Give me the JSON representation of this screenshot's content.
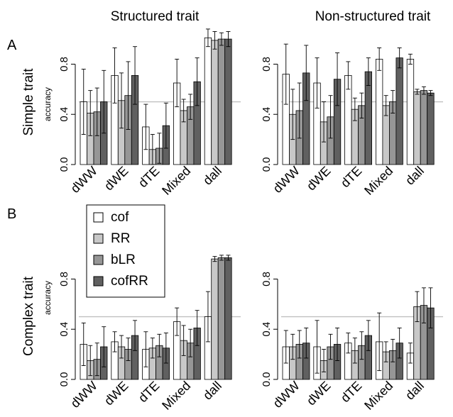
{
  "figure": {
    "column_titles": [
      "Structured trait",
      "Non-structured trait"
    ],
    "panel_letters": [
      "A",
      "B"
    ],
    "row_titles": [
      "Simple trait",
      "Complex trait"
    ],
    "row_subtitles": [
      "accuracy",
      "accuracy"
    ]
  },
  "colors": {
    "series": [
      "#ffffff",
      "#c8c8c8",
      "#969696",
      "#606060"
    ],
    "stroke": "#000000",
    "reference_line": "#c0c0c0"
  },
  "legend": {
    "entries": [
      "cof",
      "RR",
      "bLR",
      "cofRR"
    ]
  },
  "chart_data": [
    {
      "type": "bar",
      "panel": "A",
      "row_title": "Simple trait",
      "column_title": "Structured trait",
      "ylabel": "accuracy",
      "categories": [
        "dWW",
        "dWE",
        "dTE",
        "Mixed",
        "dall"
      ],
      "series": [
        {
          "name": "cof",
          "values": [
            0.5,
            0.71,
            0.3,
            0.65,
            1.01
          ],
          "errors": [
            0.26,
            0.22,
            0.18,
            0.19,
            0.07
          ]
        },
        {
          "name": "RR",
          "values": [
            0.41,
            0.51,
            0.12,
            0.43,
            0.99
          ],
          "errors": [
            0.18,
            0.22,
            0.12,
            0.09,
            0.07
          ]
        },
        {
          "name": "bLR",
          "values": [
            0.42,
            0.55,
            0.13,
            0.46,
            1.0
          ],
          "errors": [
            0.19,
            0.27,
            0.12,
            0.1,
            0.05
          ]
        },
        {
          "name": "cofRR",
          "values": [
            0.5,
            0.71,
            0.31,
            0.66,
            1.0
          ],
          "errors": [
            0.25,
            0.23,
            0.18,
            0.19,
            0.06
          ]
        }
      ],
      "reference_y": 0.5,
      "ylim": [
        0,
        1.04
      ],
      "yticks": [
        "0.0",
        "0.4",
        "0.8"
      ],
      "ytick_values": [
        0,
        0.4,
        0.8
      ],
      "grid": false
    },
    {
      "type": "bar",
      "panel": "A",
      "row_title": "Simple trait",
      "column_title": "Non-structured trait",
      "ylabel": "",
      "categories": [
        "dWW",
        "dWE",
        "dTE",
        "Mixed",
        "dall"
      ],
      "series": [
        {
          "name": "cof",
          "values": [
            0.72,
            0.65,
            0.71,
            0.84,
            0.84
          ],
          "errors": [
            0.24,
            0.2,
            0.11,
            0.09,
            0.04
          ]
        },
        {
          "name": "RR",
          "values": [
            0.4,
            0.34,
            0.44,
            0.47,
            0.58
          ],
          "errors": [
            0.2,
            0.16,
            0.09,
            0.08,
            0.02
          ]
        },
        {
          "name": "bLR",
          "values": [
            0.43,
            0.38,
            0.47,
            0.5,
            0.59
          ],
          "errors": [
            0.22,
            0.17,
            0.1,
            0.09,
            0.03
          ]
        },
        {
          "name": "cofRR",
          "values": [
            0.73,
            0.68,
            0.74,
            0.85,
            0.57
          ],
          "errors": [
            0.22,
            0.21,
            0.11,
            0.08,
            0.02
          ]
        }
      ],
      "reference_y": 0.5,
      "ylim": [
        0,
        1.04
      ],
      "yticks": [
        "0.0",
        "0.4",
        "0.8"
      ],
      "ytick_values": [
        0,
        0.4,
        0.8
      ],
      "grid": false
    },
    {
      "type": "bar",
      "panel": "B",
      "row_title": "Complex trait",
      "column_title": "Structured trait",
      "ylabel": "accuracy",
      "categories": [
        "dWW",
        "dWE",
        "dTE",
        "Mixed",
        "dall"
      ],
      "series": [
        {
          "name": "cof",
          "values": [
            0.28,
            0.3,
            0.24,
            0.46,
            0.5
          ],
          "errors": [
            0.17,
            0.08,
            0.14,
            0.11,
            0.2
          ]
        },
        {
          "name": "RR",
          "values": [
            0.15,
            0.26,
            0.25,
            0.31,
            0.96
          ],
          "errors": [
            0.12,
            0.09,
            0.08,
            0.12,
            0.02
          ]
        },
        {
          "name": "bLR",
          "values": [
            0.16,
            0.24,
            0.27,
            0.29,
            0.97
          ],
          "errors": [
            0.13,
            0.09,
            0.09,
            0.11,
            0.02
          ]
        },
        {
          "name": "cofRR",
          "values": [
            0.26,
            0.35,
            0.25,
            0.41,
            0.97
          ],
          "errors": [
            0.16,
            0.12,
            0.12,
            0.14,
            0.02
          ]
        }
      ],
      "reference_y": 0.5,
      "ylim": [
        0,
        1.04
      ],
      "yticks": [
        "0.0",
        "0.4",
        "0.8"
      ],
      "ytick_values": [
        0,
        0.4,
        0.8
      ],
      "grid": false
    },
    {
      "type": "bar",
      "panel": "B",
      "row_title": "Complex trait",
      "column_title": "Non-structured trait",
      "ylabel": "",
      "categories": [
        "dWW",
        "dWE",
        "dTE",
        "Mixed",
        "dall"
      ],
      "series": [
        {
          "name": "cof",
          "values": [
            0.26,
            0.26,
            0.29,
            0.3,
            0.21
          ],
          "errors": [
            0.13,
            0.21,
            0.08,
            0.23,
            0.08
          ]
        },
        {
          "name": "RR",
          "values": [
            0.26,
            0.15,
            0.23,
            0.22,
            0.58
          ],
          "errors": [
            0.1,
            0.09,
            0.1,
            0.08,
            0.12
          ]
        },
        {
          "name": "bLR",
          "values": [
            0.28,
            0.26,
            0.27,
            0.23,
            0.59
          ],
          "errors": [
            0.11,
            0.1,
            0.11,
            0.09,
            0.14
          ]
        },
        {
          "name": "cofRR",
          "values": [
            0.29,
            0.28,
            0.35,
            0.29,
            0.57
          ],
          "errors": [
            0.12,
            0.13,
            0.12,
            0.12,
            0.16
          ]
        }
      ],
      "reference_y": 0.5,
      "ylim": [
        0,
        1.04
      ],
      "yticks": [
        "0.0",
        "0.4",
        "0.8"
      ],
      "ytick_values": [
        0,
        0.4,
        0.8
      ],
      "grid": false
    }
  ]
}
